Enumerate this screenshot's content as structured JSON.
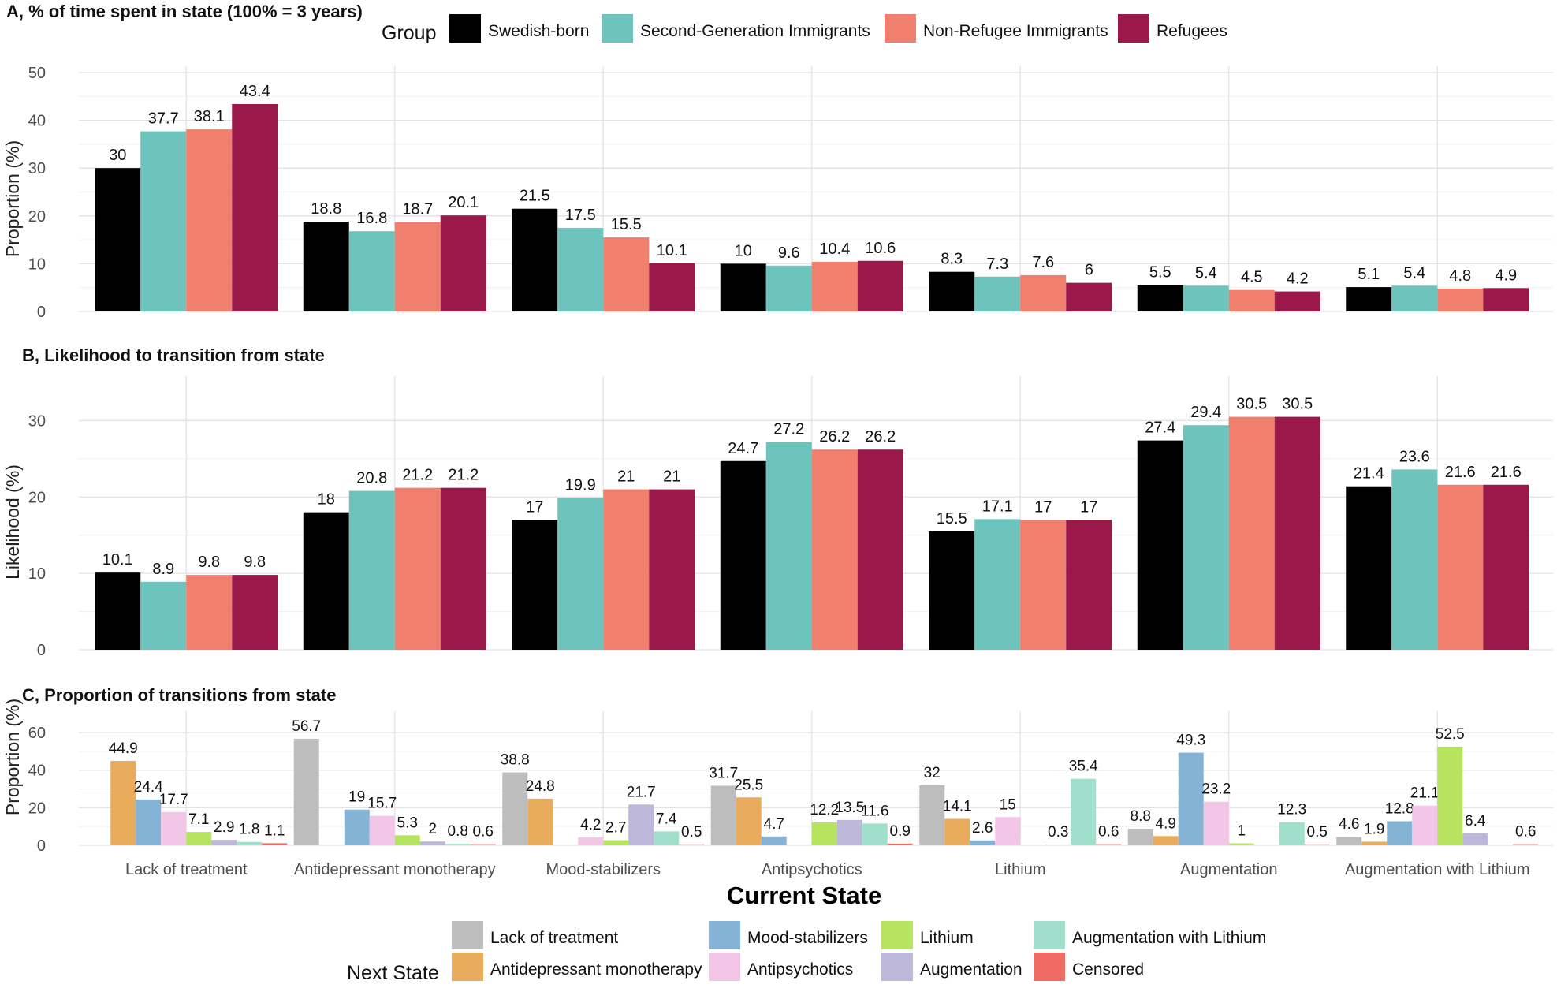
{
  "figure": {
    "x_title": "Current State",
    "group_legend_title": "Group",
    "next_state_legend_title": "Next State"
  },
  "chart_data": [
    {
      "type": "bar",
      "title": "A, % of time spent in state (100% = 3 years)",
      "ylabel": "Proportion (%)",
      "xlabel": "Current State",
      "ylim": [
        0,
        50
      ],
      "yticks": [
        0,
        10,
        20,
        30,
        40,
        50
      ],
      "categories": [
        "Lack of treatment",
        "Antidepressant monotherapy",
        "Mood-stabilizers",
        "Antipsychotics",
        "Lithium",
        "Augmentation",
        "Augmentation with Lithium"
      ],
      "series": [
        {
          "name": "Swedish-born",
          "color": "#000000",
          "values": [
            30,
            18.8,
            21.5,
            10,
            8.3,
            5.5,
            5.1
          ],
          "labels": [
            "30",
            "18.8",
            "21.5",
            "10",
            "8.3",
            "5.5",
            "5.1"
          ]
        },
        {
          "name": "Second-Generation Immigrants",
          "color": "#6cc4bc",
          "values": [
            37.7,
            16.8,
            17.5,
            9.6,
            7.3,
            5.4,
            5.4
          ],
          "labels": [
            "37.7",
            "16.8",
            "17.5",
            "9.6",
            "7.3",
            "5.4",
            "5.4"
          ]
        },
        {
          "name": "Non-Refugee Immigrants",
          "color": "#f17f6e",
          "values": [
            38.1,
            18.7,
            15.5,
            10.4,
            7.6,
            4.5,
            4.8
          ],
          "labels": [
            "38.1",
            "18.7",
            "15.5",
            "10.4",
            "7.6",
            "4.5",
            "4.8"
          ]
        },
        {
          "name": "Refugees",
          "color": "#9b184a",
          "values": [
            43.4,
            20.1,
            10.1,
            10.6,
            6,
            4.2,
            4.9
          ],
          "labels": [
            "43.4",
            "20.1",
            "10.1",
            "10.6",
            "6",
            "4.2",
            "4.9"
          ]
        }
      ]
    },
    {
      "type": "bar",
      "title": "B, Likelihood to transition from state",
      "ylabel": "Likelihood (%)",
      "xlabel": "Current State",
      "ylim": [
        0,
        35
      ],
      "yticks": [
        0,
        10,
        20,
        30
      ],
      "categories": [
        "Lack of treatment",
        "Antidepressant monotherapy",
        "Mood-stabilizers",
        "Antipsychotics",
        "Lithium",
        "Augmentation",
        "Augmentation with Lithium"
      ],
      "series": [
        {
          "name": "Swedish-born",
          "color": "#000000",
          "values": [
            10.1,
            18,
            17,
            24.7,
            15.5,
            27.4,
            21.4
          ],
          "labels": [
            "10.1",
            "18",
            "17",
            "24.7",
            "15.5",
            "27.4",
            "21.4"
          ]
        },
        {
          "name": "Second-Generation Immigrants",
          "color": "#6cc4bc",
          "values": [
            8.9,
            20.8,
            19.9,
            27.2,
            17.1,
            29.4,
            23.6
          ],
          "labels": [
            "8.9",
            "20.8",
            "19.9",
            "27.2",
            "17.1",
            "29.4",
            "23.6"
          ]
        },
        {
          "name": "Non-Refugee Immigrants",
          "color": "#f17f6e",
          "values": [
            9.8,
            21.2,
            21,
            26.2,
            17,
            30.5,
            21.6
          ],
          "labels": [
            "9.8",
            "21.2",
            "21",
            "26.2",
            "17",
            "30.5",
            "21.6"
          ]
        },
        {
          "name": "Refugees",
          "color": "#9b184a",
          "values": [
            9.8,
            21.2,
            21,
            26.2,
            17,
            30.5,
            21.6
          ],
          "labels": [
            "9.8",
            "21.2",
            "21",
            "26.2",
            "17",
            "30.5",
            "21.6"
          ]
        }
      ]
    },
    {
      "type": "bar",
      "title": "C, Proportion of transitions from state",
      "ylabel": "Proportion (%)",
      "xlabel": "Current State",
      "ylim": [
        0,
        68
      ],
      "yticks": [
        0,
        20,
        40,
        60
      ],
      "categories": [
        "Lack of treatment",
        "Antidepressant monotherapy",
        "Mood-stabilizers",
        "Antipsychotics",
        "Lithium",
        "Augmentation",
        "Augmentation with Lithium"
      ],
      "series": [
        {
          "name": "Lack of treatment",
          "color": "#bdbdbd",
          "values": [
            null,
            56.7,
            38.8,
            31.7,
            32,
            8.8,
            4.6
          ],
          "labels": [
            null,
            "56.7",
            "38.8",
            "31.7",
            "32",
            "8.8",
            "4.6"
          ]
        },
        {
          "name": "Antidepressant monotherapy",
          "color": "#e9ac5d",
          "values": [
            44.9,
            null,
            24.8,
            25.5,
            14.1,
            4.9,
            1.9
          ],
          "labels": [
            "44.9",
            null,
            "24.8",
            "25.5",
            "14.1",
            "4.9",
            "1.9"
          ]
        },
        {
          "name": "Mood-stabilizers",
          "color": "#85b3d6",
          "values": [
            24.4,
            19,
            null,
            4.7,
            2.6,
            49.3,
            12.8
          ],
          "labels": [
            "24.4",
            "19",
            null,
            "4.7",
            "2.6",
            "49.3",
            "12.8"
          ]
        },
        {
          "name": "Antipsychotics",
          "color": "#f2c6e6",
          "values": [
            17.7,
            15.7,
            4.2,
            null,
            15,
            23.2,
            21.1
          ],
          "labels": [
            "17.7",
            "15.7",
            "4.2",
            null,
            "15",
            "23.2",
            "21.1"
          ]
        },
        {
          "name": "Lithium",
          "color": "#b7e45e",
          "values": [
            7.1,
            5.3,
            2.7,
            12.2,
            null,
            1,
            52.5
          ],
          "labels": [
            "7.1",
            "5.3",
            "2.7",
            "12.2",
            null,
            "1",
            "52.5"
          ]
        },
        {
          "name": "Augmentation",
          "color": "#bdb7da",
          "values": [
            2.9,
            2,
            21.7,
            13.5,
            0.3,
            null,
            6.4
          ],
          "labels": [
            "2.9",
            "2",
            "21.7",
            "13.5",
            "0.3",
            null,
            "6.4"
          ]
        },
        {
          "name": "Augmentation with Lithium",
          "color": "#9fdfcb",
          "values": [
            1.8,
            0.8,
            7.4,
            11.6,
            35.4,
            12.3,
            null
          ],
          "labels": [
            "1.8",
            "0.8",
            "7.4",
            "11.6",
            "35.4",
            "12.3",
            null
          ]
        },
        {
          "name": "Censored",
          "color": "#ef6b63",
          "values": [
            1.1,
            0.6,
            0.5,
            0.9,
            0.6,
            0.5,
            0.6
          ],
          "labels": [
            "1.1",
            "0.6",
            "0.5",
            "0.9",
            "0.6",
            "0.5",
            "0.6"
          ]
        }
      ]
    }
  ]
}
